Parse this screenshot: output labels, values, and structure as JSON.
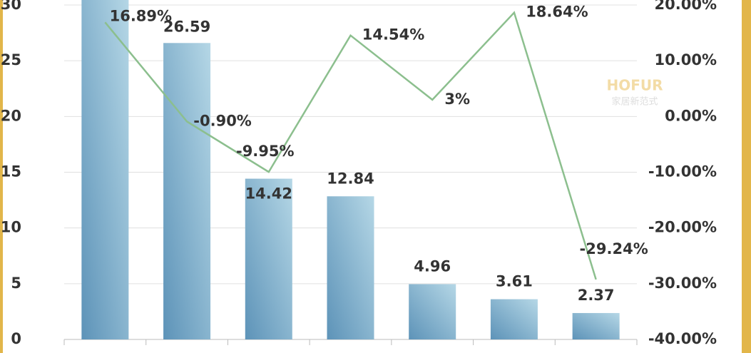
{
  "chart_data": {
    "type": "bar-line",
    "categories": [
      null,
      null,
      null,
      null,
      null,
      null,
      null
    ],
    "series": [
      {
        "type": "bar",
        "color": "#6aa3c4",
        "values": [
          31,
          26.59,
          14.42,
          12.84,
          4.96,
          3.61,
          2.37
        ],
        "value_labels": [
          null,
          "26.59",
          "14.42",
          "12.84",
          "4.96",
          "3.61",
          "2.37"
        ]
      },
      {
        "type": "line",
        "axis": "y2",
        "color": "#8cbf8e",
        "values": [
          16.89,
          -0.9,
          -9.95,
          14.54,
          3,
          18.64,
          -29.24
        ],
        "value_labels": [
          "16.89%",
          "-0.90%",
          "-9.95%",
          "14.54%",
          "3%",
          "18.64%",
          "-29.24%"
        ]
      }
    ],
    "ylim": [
      0,
      30
    ],
    "yticks": [
      0,
      5,
      10,
      15,
      20,
      25,
      30
    ],
    "y2lim": [
      -40,
      20
    ],
    "y2ticks": [
      {
        "value": -40,
        "label": "-40.00%"
      },
      {
        "value": -30,
        "label": "-30.00%"
      },
      {
        "value": -20,
        "label": "-20.00%"
      },
      {
        "value": -10,
        "label": "-10.00%"
      },
      {
        "value": 0,
        "label": "0.00%"
      },
      {
        "value": 10,
        "label": "10.00%"
      },
      {
        "value": 20,
        "label": "20.00%"
      }
    ],
    "grid": true,
    "watermark": {
      "brand": "HOFUR",
      "tagline": "家居新范式"
    }
  }
}
